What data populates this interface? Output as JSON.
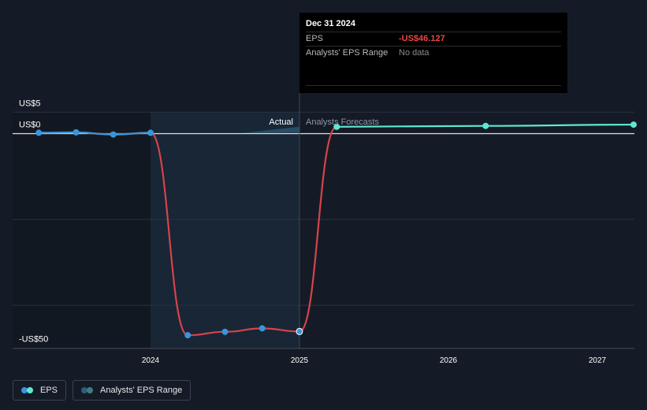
{
  "chart_data": {
    "type": "line",
    "title": "",
    "xlabel": "",
    "ylabel": "",
    "ylim": [
      -50,
      5
    ],
    "x_ticks": [
      2024,
      2025,
      2026,
      2027
    ],
    "y_ticks": [
      {
        "value": 5,
        "label": "US$5"
      },
      {
        "value": 0,
        "label": "US$0"
      },
      {
        "value": -50,
        "label": "-US$50"
      }
    ],
    "divider_x": 2025.0,
    "actual_label": "Actual",
    "forecast_label": "Analysts Forecasts",
    "series": [
      {
        "name": "EPS (actual, positive)",
        "color": "#3a95dc",
        "points": [
          [
            2023.25,
            0.2
          ],
          [
            2023.5,
            0.3
          ],
          [
            2023.75,
            -0.2
          ],
          [
            2024.0,
            0.2
          ]
        ]
      },
      {
        "name": "EPS (actual, negative)",
        "color": "#3a95dc",
        "points": [
          [
            2024.25,
            -47.0
          ],
          [
            2024.5,
            -46.2
          ],
          [
            2024.75,
            -45.4
          ],
          [
            2025.0,
            -46.127
          ]
        ]
      },
      {
        "name": "EPS (forecast)",
        "color": "#5ee8d0",
        "points": [
          [
            2025.25,
            1.6
          ],
          [
            2026.25,
            1.8
          ],
          [
            2027.25,
            2.1
          ]
        ]
      }
    ]
  },
  "tooltip": {
    "date": "Dec 31 2024",
    "eps_label": "EPS",
    "eps_value": "-US$46.127",
    "range_label": "Analysts' EPS Range",
    "range_value": "No data"
  },
  "legend": {
    "eps": "EPS",
    "range": "Analysts' EPS Range"
  },
  "colors": {
    "background": "#151b26",
    "actual_shade": "#182636",
    "past_shade": "#121821",
    "negative_line": "#d6434a",
    "positive_line": "#3a95dc",
    "forecast_line": "#5ee8d0",
    "zero_line": "#e0e0e0",
    "grid": "#2a3140"
  }
}
